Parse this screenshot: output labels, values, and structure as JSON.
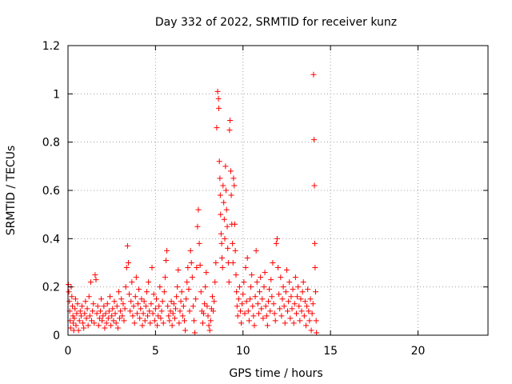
{
  "chart_data": {
    "type": "scatter",
    "title": "Day 332 of 2022, SRMTID for receiver kunz",
    "xlabel": "GPS time / hours",
    "ylabel": "SRMTID / TECUs",
    "xlim": [
      0,
      24
    ],
    "ylim": [
      0,
      1.2
    ],
    "xticks": [
      0,
      5,
      10,
      15,
      20
    ],
    "xtick_labels": [
      "0",
      "5",
      "10",
      "15",
      "20"
    ],
    "yticks": [
      0,
      0.2,
      0.4,
      0.6,
      0.8,
      1.0,
      1.2
    ],
    "ytick_labels": [
      "0",
      "0.2",
      "0.4",
      "0.6",
      "0.8",
      "1",
      "1.2"
    ],
    "grid": true,
    "marker": "plus",
    "color": "#ff0000",
    "series": [
      {
        "name": "SRMTID",
        "points": [
          [
            0.02,
            0.21
          ],
          [
            0.05,
            0.18
          ],
          [
            0.08,
            0.14
          ],
          [
            0.1,
            0.1
          ],
          [
            0.12,
            0.06
          ],
          [
            0.15,
            0.03
          ],
          [
            0.18,
            0.2
          ],
          [
            0.22,
            0.16
          ],
          [
            0.25,
            0.12
          ],
          [
            0.28,
            0.08
          ],
          [
            0.3,
            0.05
          ],
          [
            0.33,
            0.02
          ],
          [
            0.36,
            0.07
          ],
          [
            0.4,
            0.11
          ],
          [
            0.43,
            0.15
          ],
          [
            0.46,
            0.04
          ],
          [
            0.5,
            0.09
          ],
          [
            0.55,
            0.13
          ],
          [
            0.6,
            0.02
          ],
          [
            0.65,
            0.06
          ],
          [
            0.7,
            0.1
          ],
          [
            0.75,
            0.08
          ],
          [
            0.8,
            0.12
          ],
          [
            0.85,
            0.05
          ],
          [
            0.9,
            0.03
          ],
          [
            0.95,
            0.09
          ],
          [
            1.0,
            0.14
          ],
          [
            1.05,
            0.07
          ],
          [
            1.1,
            0.11
          ],
          [
            1.15,
            0.04
          ],
          [
            1.2,
            0.16
          ],
          [
            1.25,
            0.08
          ],
          [
            1.3,
            0.22
          ],
          [
            1.35,
            0.06
          ],
          [
            1.4,
            0.1
          ],
          [
            1.45,
            0.13
          ],
          [
            1.5,
            0.05
          ],
          [
            1.55,
            0.25
          ],
          [
            1.6,
            0.23
          ],
          [
            1.65,
            0.09
          ],
          [
            1.7,
            0.12
          ],
          [
            1.75,
            0.04
          ],
          [
            1.8,
            0.07
          ],
          [
            1.85,
            0.1
          ],
          [
            1.9,
            0.15
          ],
          [
            1.95,
            0.06
          ],
          [
            2.0,
            0.08
          ],
          [
            2.05,
            0.12
          ],
          [
            2.1,
            0.03
          ],
          [
            2.15,
            0.09
          ],
          [
            2.2,
            0.05
          ],
          [
            2.25,
            0.13
          ],
          [
            2.3,
            0.07
          ],
          [
            2.35,
            0.1
          ],
          [
            2.4,
            0.16
          ],
          [
            2.45,
            0.04
          ],
          [
            2.5,
            0.08
          ],
          [
            2.55,
            0.11
          ],
          [
            2.6,
            0.06
          ],
          [
            2.65,
            0.14
          ],
          [
            2.7,
            0.09
          ],
          [
            2.75,
            0.05
          ],
          [
            2.8,
            0.12
          ],
          [
            2.85,
            0.03
          ],
          [
            2.9,
            0.18
          ],
          [
            2.95,
            0.07
          ],
          [
            3.0,
            0.1
          ],
          [
            3.05,
            0.15
          ],
          [
            3.1,
            0.08
          ],
          [
            3.15,
            0.13
          ],
          [
            3.2,
            0.06
          ],
          [
            3.25,
            0.11
          ],
          [
            3.3,
            0.2
          ],
          [
            3.35,
            0.28
          ],
          [
            3.4,
            0.37
          ],
          [
            3.45,
            0.3
          ],
          [
            3.5,
            0.17
          ],
          [
            3.55,
            0.1
          ],
          [
            3.6,
            0.14
          ],
          [
            3.65,
            0.22
          ],
          [
            3.7,
            0.08
          ],
          [
            3.75,
            0.12
          ],
          [
            3.8,
            0.05
          ],
          [
            3.85,
            0.16
          ],
          [
            3.9,
            0.24
          ],
          [
            3.95,
            0.09
          ],
          [
            4.0,
            0.13
          ],
          [
            4.05,
            0.19
          ],
          [
            4.1,
            0.07
          ],
          [
            4.15,
            0.11
          ],
          [
            4.2,
            0.15
          ],
          [
            4.25,
            0.04
          ],
          [
            4.3,
            0.09
          ],
          [
            4.35,
            0.14
          ],
          [
            4.4,
            0.06
          ],
          [
            4.45,
            0.12
          ],
          [
            4.5,
            0.18
          ],
          [
            4.55,
            0.08
          ],
          [
            4.6,
            0.22
          ],
          [
            4.65,
            0.1
          ],
          [
            4.7,
            0.05
          ],
          [
            4.75,
            0.13
          ],
          [
            4.8,
            0.28
          ],
          [
            4.85,
            0.09
          ],
          [
            4.9,
            0.17
          ],
          [
            4.95,
            0.06
          ],
          [
            5.0,
            0.11
          ],
          [
            5.05,
            0.15
          ],
          [
            5.1,
            0.04
          ],
          [
            5.15,
            0.08
          ],
          [
            5.2,
            0.12
          ],
          [
            5.25,
            0.2
          ],
          [
            5.3,
            0.07
          ],
          [
            5.35,
            0.1
          ],
          [
            5.4,
            0.14
          ],
          [
            5.45,
            0.05
          ],
          [
            5.5,
            0.18
          ],
          [
            5.55,
            0.24
          ],
          [
            5.6,
            0.31
          ],
          [
            5.65,
            0.35
          ],
          [
            5.7,
            0.12
          ],
          [
            5.75,
            0.08
          ],
          [
            5.8,
            0.06
          ],
          [
            5.85,
            0.1
          ],
          [
            5.9,
            0.14
          ],
          [
            5.95,
            0.04
          ],
          [
            6.0,
            0.09
          ],
          [
            6.05,
            0.13
          ],
          [
            6.1,
            0.07
          ],
          [
            6.15,
            0.11
          ],
          [
            6.2,
            0.16
          ],
          [
            6.25,
            0.2
          ],
          [
            6.3,
            0.27
          ],
          [
            6.35,
            0.05
          ],
          [
            6.4,
            0.1
          ],
          [
            6.45,
            0.14
          ],
          [
            6.5,
            0.18
          ],
          [
            6.55,
            0.08
          ],
          [
            6.6,
            0.12
          ],
          [
            6.65,
            0.06
          ],
          [
            6.7,
            0.02
          ],
          [
            6.75,
            0.15
          ],
          [
            6.8,
            0.22
          ],
          [
            6.85,
            0.28
          ],
          [
            6.9,
            0.19
          ],
          [
            6.95,
            0.1
          ],
          [
            7.0,
            0.35
          ],
          [
            7.05,
            0.3
          ],
          [
            7.1,
            0.24
          ],
          [
            7.15,
            0.12
          ],
          [
            7.2,
            0.06
          ],
          [
            7.25,
            0.01
          ],
          [
            7.3,
            0.15
          ],
          [
            7.35,
            0.28
          ],
          [
            7.4,
            0.45
          ],
          [
            7.45,
            0.52
          ],
          [
            7.5,
            0.38
          ],
          [
            7.55,
            0.29
          ],
          [
            7.6,
            0.18
          ],
          [
            7.65,
            0.1
          ],
          [
            7.7,
            0.05
          ],
          [
            7.75,
            0.09
          ],
          [
            7.8,
            0.13
          ],
          [
            7.85,
            0.2
          ],
          [
            7.9,
            0.26
          ],
          [
            7.95,
            0.12
          ],
          [
            8.0,
            0.08
          ],
          [
            8.05,
            0.04
          ],
          [
            8.1,
            0.02
          ],
          [
            8.15,
            0.06
          ],
          [
            8.2,
            0.11
          ],
          [
            8.25,
            0.16
          ],
          [
            8.3,
            0.1
          ],
          [
            8.35,
            0.14
          ],
          [
            8.4,
            0.22
          ],
          [
            8.45,
            0.3
          ],
          [
            8.5,
            0.86
          ],
          [
            8.55,
            1.01
          ],
          [
            8.6,
            0.98
          ],
          [
            8.62,
            0.94
          ],
          [
            8.65,
            0.72
          ],
          [
            8.68,
            0.65
          ],
          [
            8.7,
            0.58
          ],
          [
            8.72,
            0.5
          ],
          [
            8.75,
            0.42
          ],
          [
            8.78,
            0.38
          ],
          [
            8.8,
            0.32
          ],
          [
            8.83,
            0.28
          ],
          [
            8.86,
            0.62
          ],
          [
            8.9,
            0.55
          ],
          [
            8.93,
            0.48
          ],
          [
            8.96,
            0.4
          ],
          [
            9.0,
            0.7
          ],
          [
            9.03,
            0.6
          ],
          [
            9.06,
            0.52
          ],
          [
            9.1,
            0.45
          ],
          [
            9.13,
            0.36
          ],
          [
            9.16,
            0.3
          ],
          [
            9.2,
            0.22
          ],
          [
            9.23,
            0.85
          ],
          [
            9.26,
            0.89
          ],
          [
            9.3,
            0.68
          ],
          [
            9.33,
            0.58
          ],
          [
            9.36,
            0.46
          ],
          [
            9.4,
            0.38
          ],
          [
            9.43,
            0.3
          ],
          [
            9.46,
            0.65
          ],
          [
            9.5,
            0.62
          ],
          [
            9.53,
            0.46
          ],
          [
            9.56,
            0.35
          ],
          [
            9.6,
            0.25
          ],
          [
            9.63,
            0.18
          ],
          [
            9.66,
            0.12
          ],
          [
            9.7,
            0.08
          ],
          [
            9.75,
            0.15
          ],
          [
            9.8,
            0.2
          ],
          [
            9.85,
            0.1
          ],
          [
            9.9,
            0.05
          ],
          [
            9.95,
            0.13
          ],
          [
            10.0,
            0.17
          ],
          [
            10.05,
            0.22
          ],
          [
            10.1,
            0.09
          ],
          [
            10.15,
            0.28
          ],
          [
            10.2,
            0.14
          ],
          [
            10.25,
            0.32
          ],
          [
            10.3,
            0.1
          ],
          [
            10.35,
            0.06
          ],
          [
            10.4,
            0.15
          ],
          [
            10.45,
            0.2
          ],
          [
            10.5,
            0.25
          ],
          [
            10.55,
            0.12
          ],
          [
            10.6,
            0.08
          ],
          [
            10.65,
            0.04
          ],
          [
            10.7,
            0.16
          ],
          [
            10.75,
            0.35
          ],
          [
            10.8,
            0.22
          ],
          [
            10.85,
            0.13
          ],
          [
            10.9,
            0.09
          ],
          [
            10.95,
            0.18
          ],
          [
            11.0,
            0.24
          ],
          [
            11.05,
            0.11
          ],
          [
            11.1,
            0.15
          ],
          [
            11.15,
            0.07
          ],
          [
            11.2,
            0.2
          ],
          [
            11.25,
            0.26
          ],
          [
            11.3,
            0.12
          ],
          [
            11.35,
            0.08
          ],
          [
            11.4,
            0.04
          ],
          [
            11.45,
            0.14
          ],
          [
            11.5,
            0.19
          ],
          [
            11.55,
            0.1
          ],
          [
            11.6,
            0.23
          ],
          [
            11.65,
            0.16
          ],
          [
            11.7,
            0.3
          ],
          [
            11.75,
            0.13
          ],
          [
            11.8,
            0.09
          ],
          [
            11.85,
            0.06
          ],
          [
            11.9,
            0.38
          ],
          [
            11.95,
            0.4
          ],
          [
            12.0,
            0.28
          ],
          [
            12.05,
            0.17
          ],
          [
            12.1,
            0.11
          ],
          [
            12.15,
            0.24
          ],
          [
            12.2,
            0.08
          ],
          [
            12.25,
            0.15
          ],
          [
            12.3,
            0.2
          ],
          [
            12.35,
            0.12
          ],
          [
            12.4,
            0.05
          ],
          [
            12.45,
            0.18
          ],
          [
            12.5,
            0.27
          ],
          [
            12.55,
            0.1
          ],
          [
            12.6,
            0.14
          ],
          [
            12.65,
            0.22
          ],
          [
            12.7,
            0.07
          ],
          [
            12.75,
            0.16
          ],
          [
            12.8,
            0.11
          ],
          [
            12.85,
            0.19
          ],
          [
            12.9,
            0.05
          ],
          [
            12.95,
            0.13
          ],
          [
            13.0,
            0.24
          ],
          [
            13.05,
            0.09
          ],
          [
            13.1,
            0.16
          ],
          [
            13.15,
            0.2
          ],
          [
            13.2,
            0.12
          ],
          [
            13.25,
            0.06
          ],
          [
            13.3,
            0.15
          ],
          [
            13.35,
            0.1
          ],
          [
            13.4,
            0.18
          ],
          [
            13.45,
            0.22
          ],
          [
            13.5,
            0.08
          ],
          [
            13.55,
            0.14
          ],
          [
            13.6,
            0.04
          ],
          [
            13.65,
            0.12
          ],
          [
            13.7,
            0.19
          ],
          [
            13.75,
            0.1
          ],
          [
            13.8,
            0.06
          ],
          [
            13.85,
            0.15
          ],
          [
            13.9,
            0.02
          ],
          [
            13.95,
            0.09
          ],
          [
            14.0,
            0.13
          ],
          [
            14.03,
            1.08
          ],
          [
            14.06,
            0.81
          ],
          [
            14.08,
            0.62
          ],
          [
            14.1,
            0.38
          ],
          [
            14.12,
            0.28
          ],
          [
            14.15,
            0.18
          ],
          [
            14.18,
            0.06
          ],
          [
            14.2,
            0.01
          ]
        ]
      }
    ]
  }
}
